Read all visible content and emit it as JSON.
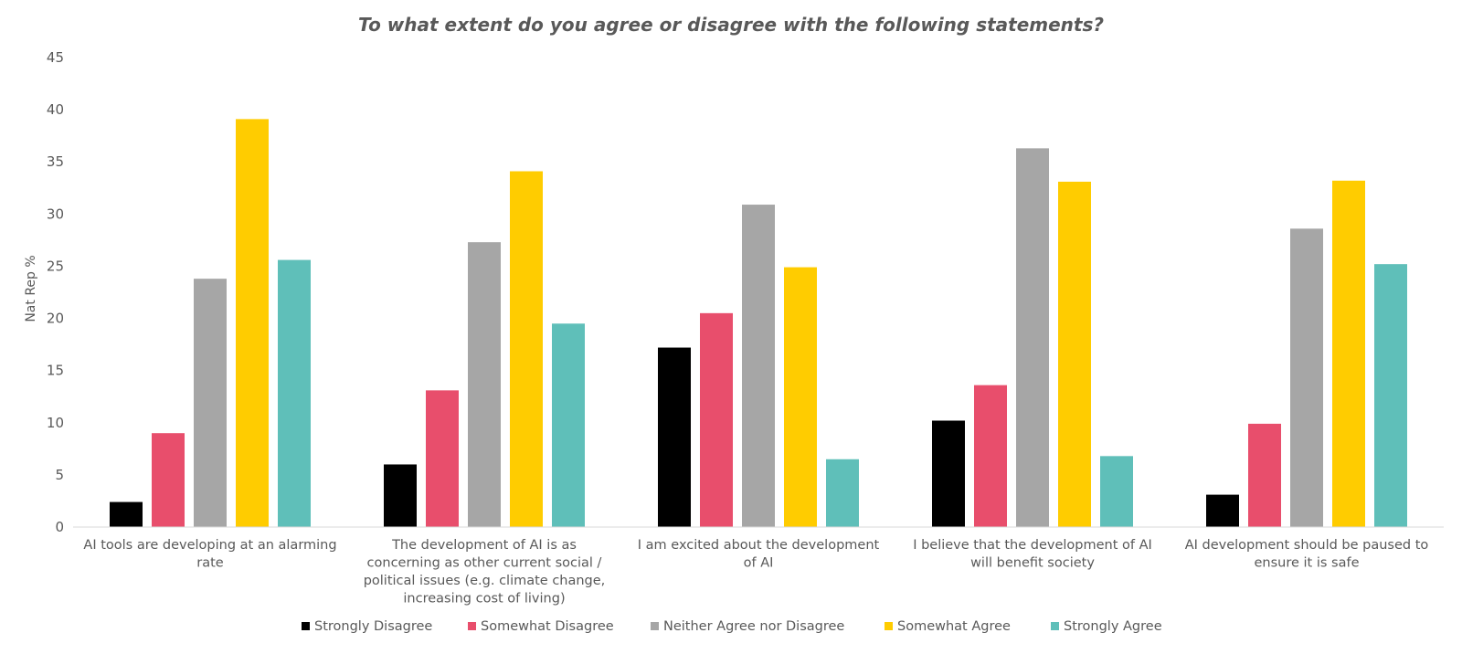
{
  "chart_data": {
    "type": "bar",
    "title": "To what extent do you agree or disagree with the following statements?",
    "xlabel": "",
    "ylabel": "Nat Rep %",
    "ylim": [
      0,
      45
    ],
    "yticks": [
      0,
      5,
      10,
      15,
      20,
      25,
      30,
      35,
      40,
      45
    ],
    "grid": false,
    "legend_position": "bottom",
    "categories": [
      [
        "AI tools are developing at an alarming",
        "rate"
      ],
      [
        "The development of AI is as",
        "concerning as other current social /",
        "political issues (e.g. climate change,",
        "increasing cost of living)"
      ],
      [
        "I am excited about the development",
        "of AI"
      ],
      [
        "I believe that the development of AI",
        "will benefit society"
      ],
      [
        "AI development should be paused to",
        "ensure it is safe"
      ]
    ],
    "series": [
      {
        "name": "Strongly Disagree",
        "color": "#000000",
        "values": [
          2.4,
          6.0,
          17.2,
          10.2,
          3.1
        ]
      },
      {
        "name": "Somewhat Disagree",
        "color": "#E84E6C",
        "values": [
          9.0,
          13.1,
          20.5,
          13.6,
          9.9
        ]
      },
      {
        "name": "Neither Agree nor Disagree",
        "color": "#A6A6A6",
        "values": [
          23.8,
          27.3,
          30.9,
          36.3,
          28.6
        ]
      },
      {
        "name": "Somewhat Agree",
        "color": "#FFCC00",
        "values": [
          39.1,
          34.1,
          24.9,
          33.1,
          33.2
        ]
      },
      {
        "name": "Strongly Agree",
        "color": "#5FBFB9",
        "values": [
          25.6,
          19.5,
          6.5,
          6.8,
          25.2
        ]
      }
    ]
  }
}
